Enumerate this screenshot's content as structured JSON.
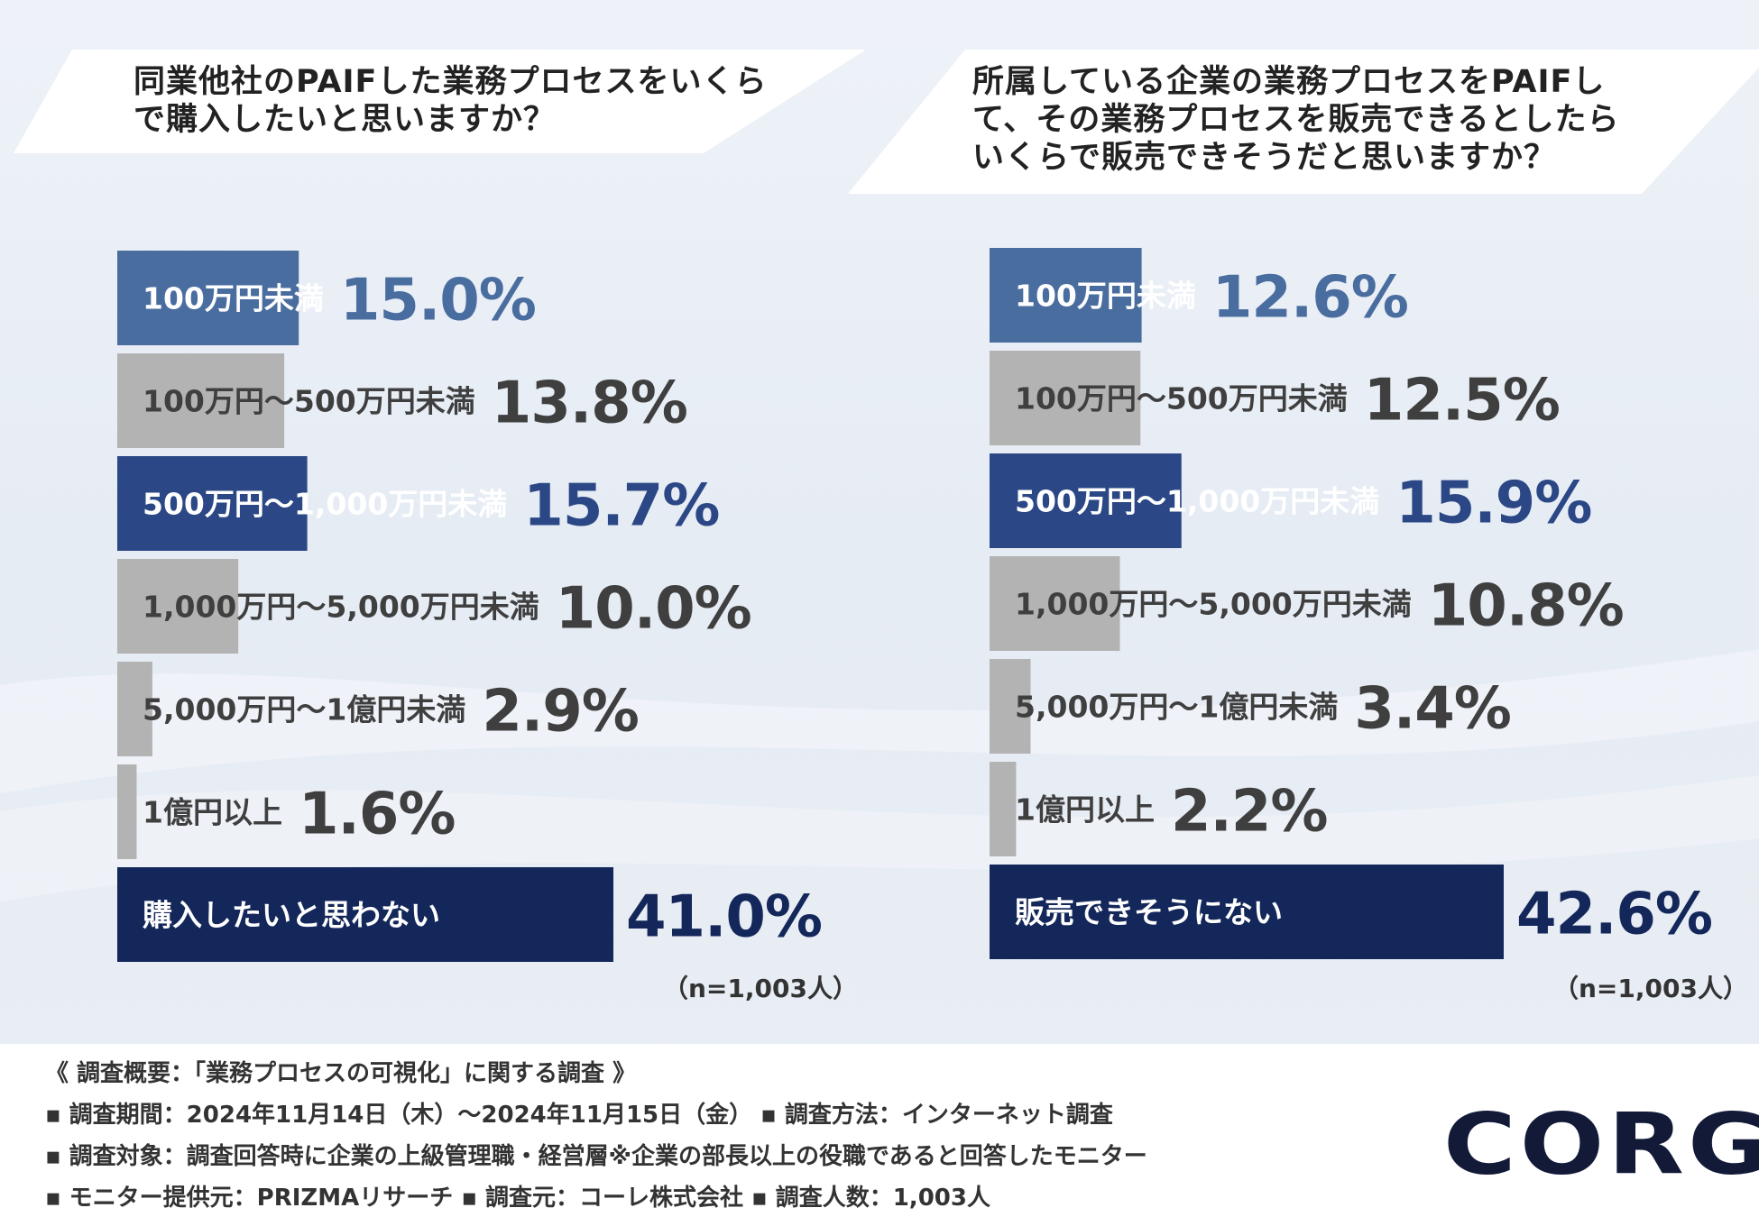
{
  "colors": {
    "blue_light": "#4a6da0",
    "blue_mid": "#2b4785",
    "navy": "#14275a",
    "gray_bar": "#b3b3b3",
    "gray_text": "#3f3f3f",
    "white_text": "#ffffff"
  },
  "chart_data": [
    {
      "type": "bar",
      "orientation": "horizontal",
      "title_lines": [
        "同業他社のPAIFした業務プロセスをいくら",
        "で購入したいと思いますか？"
      ],
      "categories": [
        "100万円未満",
        "100万円〜500万円未満",
        "500万円〜1,000万円未満",
        "1,000万円〜5,000万円未満",
        "5,000万円〜1億円未満",
        "1億円以上",
        "購入したいと思わない"
      ],
      "values": [
        15.0,
        13.8,
        15.7,
        10.0,
        2.9,
        1.6,
        41.0
      ],
      "value_labels": [
        "15.0%",
        "13.8%",
        "15.7%",
        "10.0%",
        "2.9%",
        "1.6%",
        "41.0%"
      ],
      "bar_colors": [
        "#4a6da0",
        "#b3b3b3",
        "#2b4785",
        "#b3b3b3",
        "#b3b3b3",
        "#b3b3b3",
        "#14275a"
      ],
      "label_colors": [
        "#ffffff",
        "#3f3f3f",
        "#ffffff",
        "#3f3f3f",
        "#3f3f3f",
        "#3f3f3f",
        "#ffffff"
      ],
      "value_colors": [
        "#4a6da0",
        "#3f3f3f",
        "#2b4785",
        "#3f3f3f",
        "#3f3f3f",
        "#3f3f3f",
        "#14275a"
      ],
      "xlim": [
        0,
        41.0
      ],
      "unit": "%",
      "n_note": "（n=1,003人）"
    },
    {
      "type": "bar",
      "orientation": "horizontal",
      "title_lines": [
        "所属している企業の業務プロセスをPAIFし",
        "て、その業務プロセスを販売できるとしたら",
        "いくらで販売できそうだと思いますか？"
      ],
      "categories": [
        "100万円未満",
        "100万円〜500万円未満",
        "500万円〜1,000万円未満",
        "1,000万円〜5,000万円未満",
        "5,000万円〜1億円未満",
        "1億円以上",
        "販売できそうにない"
      ],
      "values": [
        12.6,
        12.5,
        15.9,
        10.8,
        3.4,
        2.2,
        42.6
      ],
      "value_labels": [
        "12.6%",
        "12.5%",
        "15.9%",
        "10.8%",
        "3.4%",
        "2.2%",
        "42.6%"
      ],
      "bar_colors": [
        "#4a6da0",
        "#b3b3b3",
        "#2b4785",
        "#b3b3b3",
        "#b3b3b3",
        "#b3b3b3",
        "#14275a"
      ],
      "label_colors": [
        "#ffffff",
        "#3f3f3f",
        "#ffffff",
        "#3f3f3f",
        "#3f3f3f",
        "#3f3f3f",
        "#ffffff"
      ],
      "value_colors": [
        "#4a6da0",
        "#3f3f3f",
        "#2b4785",
        "#3f3f3f",
        "#3f3f3f",
        "#3f3f3f",
        "#14275a"
      ],
      "xlim": [
        0,
        42.6
      ],
      "unit": "%",
      "n_note": "（n=1,003人）"
    }
  ],
  "footer": {
    "heading": "《 調査概要：「業務プロセスの可視化」に関する調査 》",
    "period": "▪ 調査期間：2024年11月14日（木）〜2024年11月15日（金）  ▪ 調査方法：インターネット調査",
    "target": "▪ 調査対象：調査回答時に企業の上級管理職・経営層※企業の部長以上の役職であると回答したモニター",
    "sources": "▪ モニター提供元：PRIZMAリサーチ     ▪ 調査元：コーレ株式会社     ▪ 調査人数：1,003人"
  },
  "logo": {
    "text": "CORG"
  }
}
